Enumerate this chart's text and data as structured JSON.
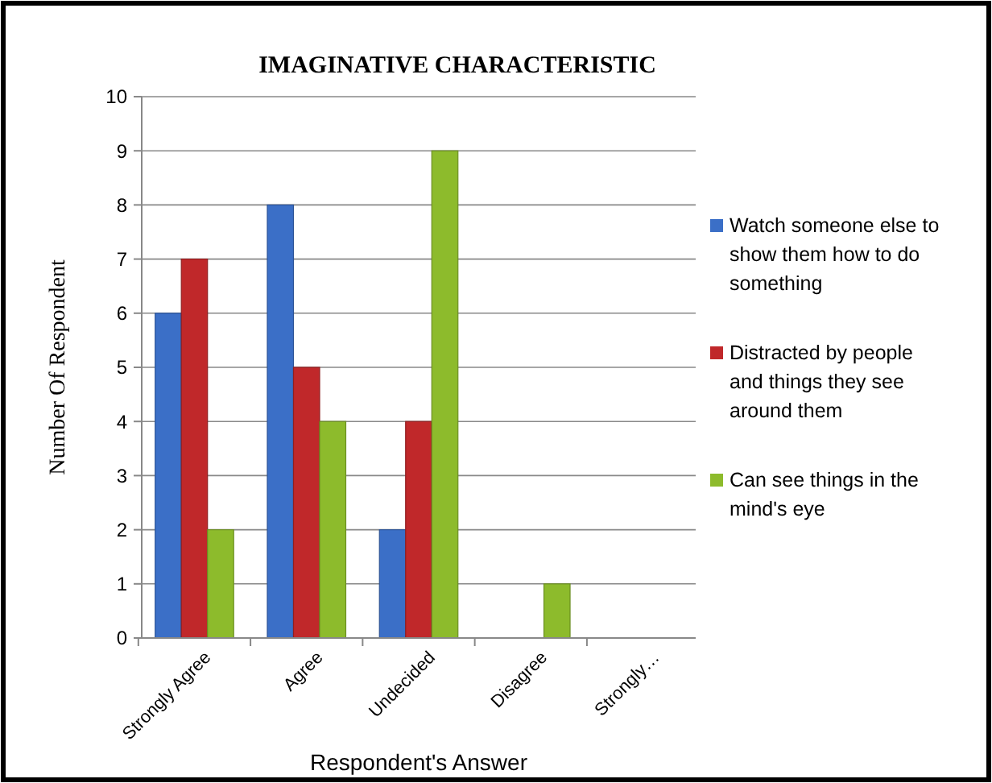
{
  "chart_data": {
    "type": "bar",
    "title": "IMAGINATIVE  CHARACTERISTIC",
    "xlabel": "Respondent's Answer",
    "ylabel": "Number Of Respondent",
    "categories": [
      "Strongly Agree",
      "Agree",
      "Undecided",
      "Disagree",
      "Strongly…"
    ],
    "series": [
      {
        "name": "Watch someone else to show them how to do something",
        "color": "#3b6fc7",
        "values": [
          6,
          8,
          2,
          0,
          0
        ]
      },
      {
        "name": "Distracted by people and things they see around them",
        "color": "#c0282a",
        "values": [
          7,
          5,
          4,
          0,
          0
        ]
      },
      {
        "name": "Can see things in the mind's eye",
        "color": "#8dbb2c",
        "values": [
          2,
          4,
          9,
          1,
          0
        ]
      }
    ],
    "ylim": [
      0,
      10
    ],
    "yticks": [
      0,
      1,
      2,
      3,
      4,
      5,
      6,
      7,
      8,
      9,
      10
    ],
    "grid": "y",
    "legend": "right"
  }
}
